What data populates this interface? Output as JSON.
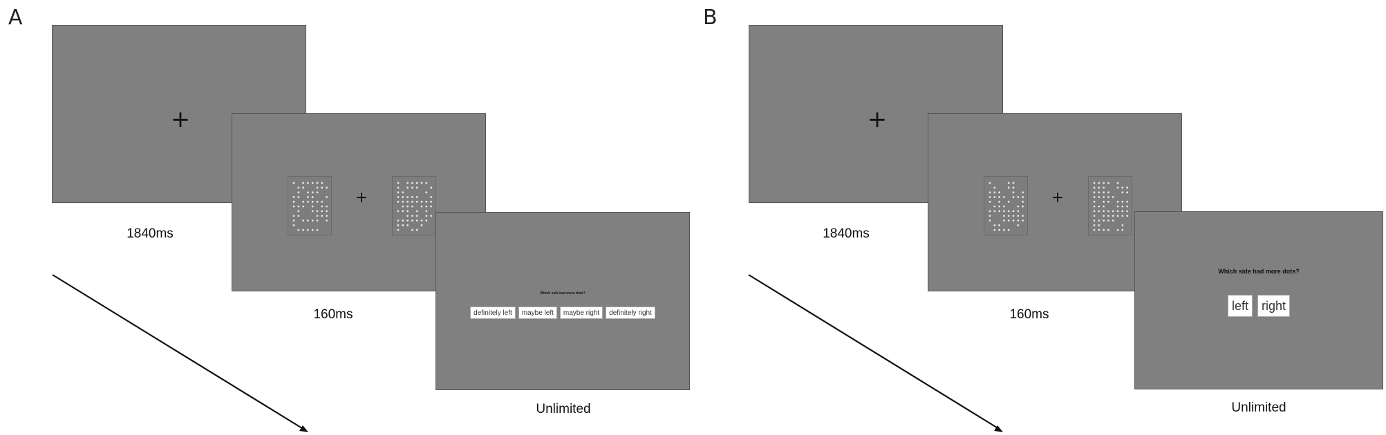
{
  "panels": [
    {
      "label": "A",
      "fixation_symbol": "+",
      "screens": {
        "fixation": {
          "duration": "1840ms"
        },
        "stimulus": {
          "duration": "160ms"
        },
        "response": {
          "duration": "Unlimited",
          "question": "Which side had more dots?",
          "buttons": [
            "definitely left",
            "maybe left",
            "maybe right",
            "definitely right"
          ]
        }
      }
    },
    {
      "label": "B",
      "fixation_symbol": "+",
      "screens": {
        "fixation": {
          "duration": "1840ms"
        },
        "stimulus": {
          "duration": "160ms"
        },
        "response": {
          "duration": "Unlimited",
          "question": "Which side had more dots?",
          "buttons": [
            "left",
            "right"
          ]
        }
      }
    }
  ],
  "colors": {
    "screen_background": "#808080",
    "dot": "#e6e6e6",
    "button_background": "#ffffff",
    "arrow": "#111111"
  }
}
